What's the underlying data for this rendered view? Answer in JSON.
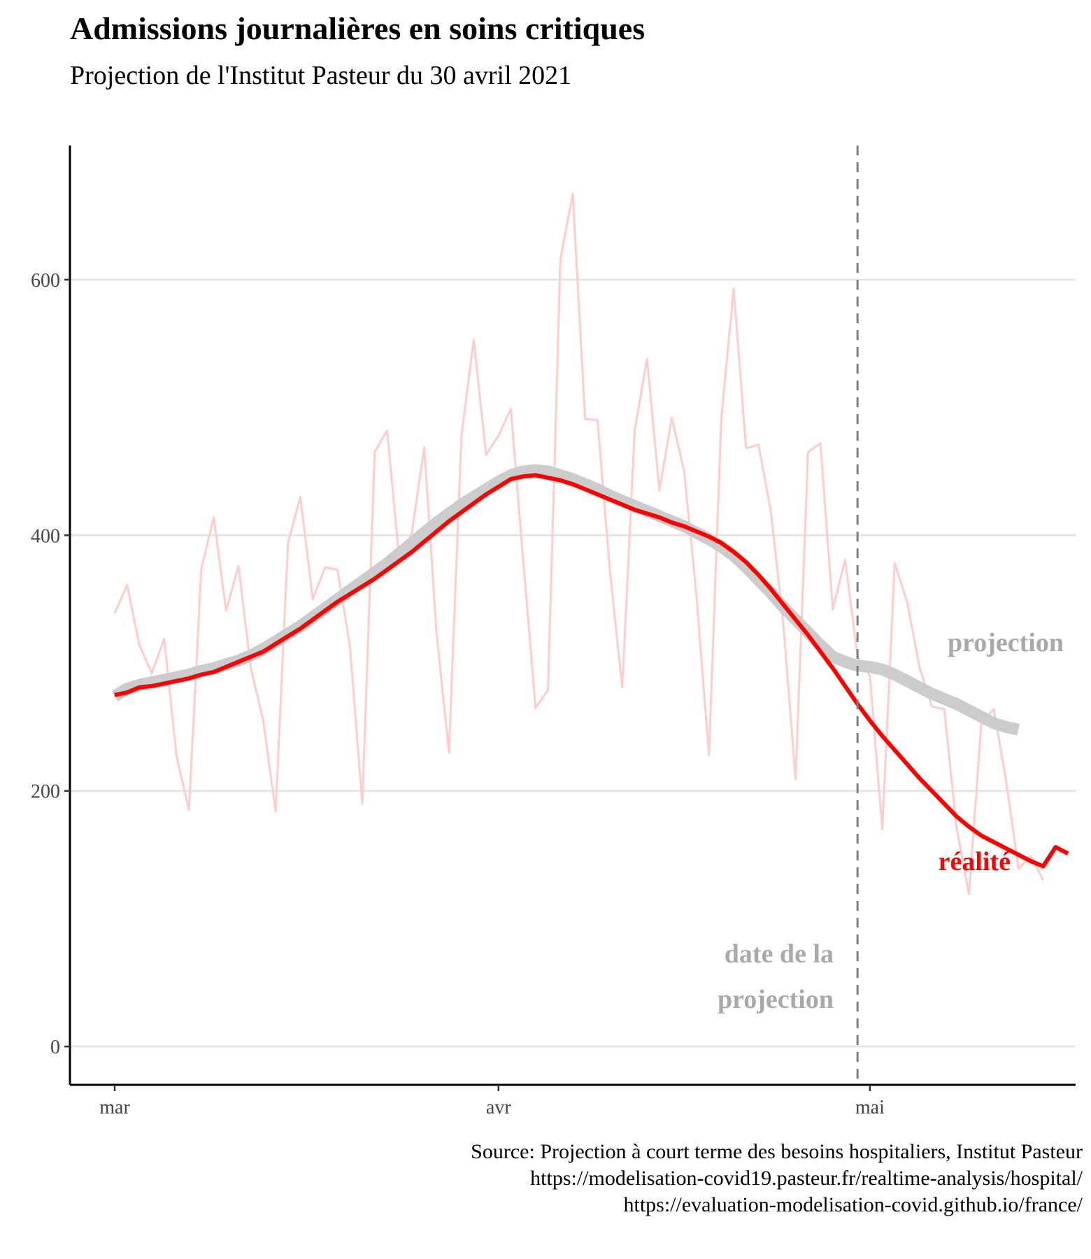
{
  "chart_data": {
    "type": "line",
    "title": "Admissions journalières en soins critiques",
    "subtitle": "Projection de l'Institut Pasteur du 30 avril 2021",
    "xlabel": "",
    "ylabel": "",
    "x_start": "2021-03-01",
    "x_end": "2021-05-14",
    "xticks": [
      {
        "date": "2021-03-01",
        "label": "mar"
      },
      {
        "date": "2021-04-01",
        "label": "avr"
      },
      {
        "date": "2021-05-01",
        "label": "mai"
      }
    ],
    "yticks": [
      0,
      200,
      400,
      600
    ],
    "ylim": [
      -30,
      705
    ],
    "grid": "horizontal",
    "projection_date": "2021-04-30",
    "series": [
      {
        "role": "daily",
        "color": "#ffcccc",
        "values": [
          339,
          361,
          314,
          292,
          319,
          227,
          185,
          374,
          414,
          341,
          376,
          296,
          255,
          184,
          394,
          430,
          350,
          375,
          373,
          313,
          190,
          465,
          482,
          379,
          402,
          469,
          323,
          230,
          477,
          553,
          463,
          478,
          499,
          380,
          265,
          279,
          616,
          667,
          491,
          490,
          372,
          281,
          482,
          538,
          435,
          492,
          450,
          352,
          228,
          491,
          593,
          468,
          471,
          419,
          332,
          209,
          465,
          472,
          342,
          381,
          305,
          290,
          170,
          378,
          348,
          297,
          266,
          264,
          171,
          119,
          253,
          264,
          208,
          139,
          149,
          130
        ]
      },
      {
        "role": "projection",
        "color": "#cccccc",
        "values": [
          274,
          280,
          283,
          285,
          287,
          289,
          291,
          294,
          296,
          299,
          302,
          306,
          311,
          317,
          323,
          329,
          336,
          343,
          350,
          357,
          364,
          371,
          378,
          386,
          394,
          402,
          410,
          417,
          424,
          430,
          436,
          442,
          447,
          450,
          451,
          450,
          447,
          444,
          440,
          436,
          431,
          427,
          423,
          419,
          415,
          411,
          407,
          402,
          397,
          391,
          384,
          375,
          365,
          355,
          344,
          334,
          324,
          314,
          305,
          301,
          298,
          297,
          295,
          291,
          286,
          281,
          276,
          272,
          268,
          263,
          258,
          253,
          250,
          248
        ]
      },
      {
        "name": "réalité",
        "role": "smoothed",
        "color": "#ff0000",
        "values": [
          275,
          277,
          281,
          282,
          284,
          286,
          288,
          291,
          293,
          297,
          301,
          305,
          309,
          315,
          321,
          327,
          334,
          341,
          348,
          354,
          360,
          366,
          373,
          380,
          387,
          395,
          403,
          411,
          418,
          425,
          432,
          438,
          444,
          446,
          447,
          445,
          443,
          440,
          436,
          432,
          428,
          424,
          420,
          417,
          414,
          410,
          407,
          403,
          399,
          394,
          387,
          379,
          369,
          358,
          346,
          334,
          322,
          309,
          296,
          282,
          268,
          255,
          243,
          232,
          221,
          210,
          200,
          190,
          180,
          172,
          165,
          160,
          155,
          150,
          145,
          141,
          156,
          151
        ]
      }
    ],
    "annotations": [
      {
        "text": "projection",
        "color": "#a9a9a9"
      },
      {
        "text": "réalité",
        "color": "#ff0000"
      },
      {
        "text": "date de la",
        "color": "#a9a9a9"
      },
      {
        "text": "projection",
        "color": "#a9a9a9"
      }
    ]
  },
  "caption": {
    "line1": "Source: Projection à court terme des besoins hospitaliers, Institut Pasteur",
    "line2": "https://modelisation-covid19.pasteur.fr/realtime-analysis/hospital/",
    "line3": "https://evaluation-modelisation-covid.github.io/france/"
  }
}
